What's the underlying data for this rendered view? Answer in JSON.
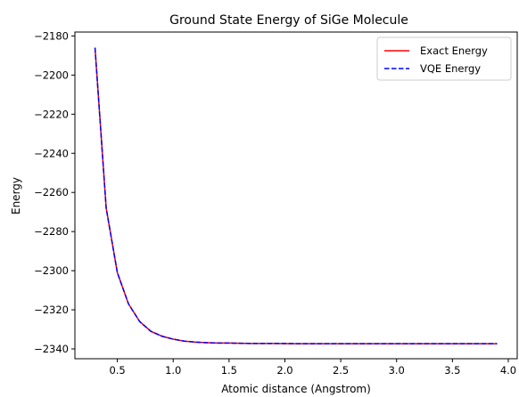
{
  "chart_data": {
    "type": "line",
    "title": "Ground State Energy of SiGe Molecule",
    "xlabel": "Atomic distance (Angstrom)",
    "ylabel": "Energy",
    "xlim": [
      0.12,
      4.08
    ],
    "ylim": [
      -2345,
      -2178
    ],
    "xticks": [
      0.5,
      1.0,
      1.5,
      2.0,
      2.5,
      3.0,
      3.5,
      4.0
    ],
    "xtick_labels": [
      "0.5",
      "1.0",
      "1.5",
      "2.0",
      "2.5",
      "3.0",
      "3.5",
      "4.0"
    ],
    "yticks": [
      -2340,
      -2320,
      -2300,
      -2280,
      -2260,
      -2240,
      -2220,
      -2200,
      -2180
    ],
    "ytick_labels": [
      "−2340",
      "−2320",
      "−2300",
      "−2280",
      "−2260",
      "−2240",
      "−2220",
      "−2200",
      "−2180"
    ],
    "grid": false,
    "legend_position": "top-right",
    "x": [
      0.3,
      0.4,
      0.5,
      0.6,
      0.7,
      0.8,
      0.9,
      1.0,
      1.1,
      1.2,
      1.3,
      1.4,
      1.5,
      1.7,
      1.9,
      2.1,
      2.3,
      2.5,
      2.7,
      2.9,
      3.1,
      3.3,
      3.5,
      3.7,
      3.9
    ],
    "series": [
      {
        "name": "Exact Energy",
        "color": "#ff0000",
        "style": "solid",
        "values": [
          -2186,
          -2268,
          -2301,
          -2317,
          -2326,
          -2331,
          -2333.5,
          -2335,
          -2336,
          -2336.5,
          -2336.8,
          -2337,
          -2337,
          -2337.2,
          -2337.2,
          -2337.3,
          -2337.3,
          -2337.3,
          -2337.3,
          -2337.3,
          -2337.3,
          -2337.3,
          -2337.3,
          -2337.3,
          -2337.3
        ]
      },
      {
        "name": "VQE Energy",
        "color": "#0000ff",
        "style": "dashed",
        "values": [
          -2186,
          -2268,
          -2301,
          -2317,
          -2326,
          -2331,
          -2333.5,
          -2335,
          -2336,
          -2336.5,
          -2336.8,
          -2337,
          -2337,
          -2337.2,
          -2337.2,
          -2337.3,
          -2337.3,
          -2337.3,
          -2337.3,
          -2337.3,
          -2337.3,
          -2337.3,
          -2337.3,
          -2337.3,
          -2337.3
        ]
      }
    ]
  }
}
